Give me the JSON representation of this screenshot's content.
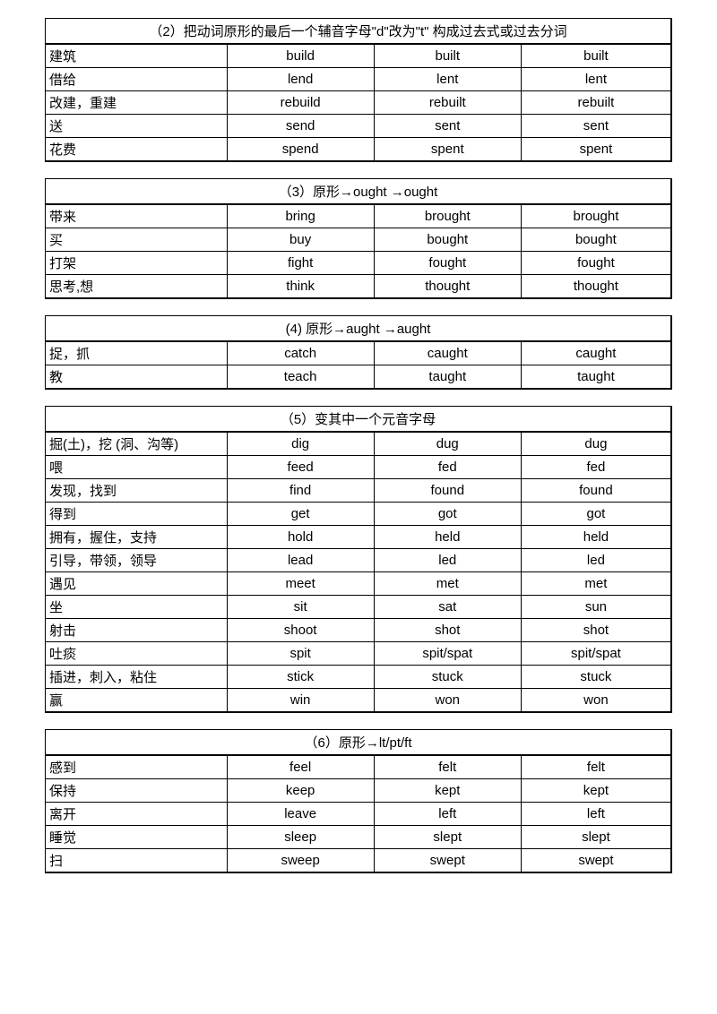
{
  "tables": [
    {
      "header": "（2）把动词原形的最后一个辅音字母\"d\"改为\"t\" 构成过去式或过去分词",
      "rows": [
        [
          "建筑",
          "build",
          "built",
          "built"
        ],
        [
          "借给",
          "lend",
          "lent",
          "lent"
        ],
        [
          "改建，重建",
          "rebuild",
          "rebuilt",
          "rebuilt"
        ],
        [
          "送",
          "send",
          "sent",
          "sent"
        ],
        [
          "花费",
          "spend",
          "spent",
          "spent"
        ]
      ]
    },
    {
      "header": "（3）原形→ought →ought",
      "rows": [
        [
          "带来",
          "bring",
          "brought",
          "brought"
        ],
        [
          "买",
          "buy",
          "bought",
          "bought"
        ],
        [
          "打架",
          "fight",
          "fought",
          "fought"
        ],
        [
          "思考,想",
          "think",
          "thought",
          "thought"
        ]
      ]
    },
    {
      "header": "(4) 原形→aught →aught",
      "rows": [
        [
          "捉，抓",
          "catch",
          "caught",
          "caught"
        ],
        [
          "教",
          "teach",
          "taught",
          "taught"
        ]
      ]
    },
    {
      "header": "（5）变其中一个元音字母",
      "rows": [
        [
          "掘(土)，挖 (洞、沟等)",
          "dig",
          "dug",
          "dug"
        ],
        [
          "喂",
          "feed",
          "fed",
          "fed"
        ],
        [
          "发现，找到",
          "find",
          "found",
          "found"
        ],
        [
          "得到",
          "get",
          "got",
          "got"
        ],
        [
          "拥有，握住，支持",
          "hold",
          "held",
          "held"
        ],
        [
          "引导，带领，领导",
          "lead",
          "led",
          "led"
        ],
        [
          "遇见",
          "meet",
          "met",
          "met"
        ],
        [
          " 坐",
          "sit",
          "sat",
          "sun"
        ],
        [
          "射击",
          "shoot",
          "shot",
          "shot"
        ],
        [
          "吐痰",
          "spit",
          "spit/spat",
          "spit/spat"
        ],
        [
          "插进，刺入，粘住",
          "stick",
          "stuck",
          "stuck"
        ],
        [
          "赢",
          "win",
          "won",
          "won"
        ]
      ]
    },
    {
      "header": "（6）原形→lt/pt/ft",
      "rows": [
        [
          "感到",
          "feel",
          "felt",
          "felt"
        ],
        [
          "保持",
          "keep",
          "kept",
          "kept"
        ],
        [
          "离开",
          "leave",
          "left",
          "left"
        ],
        [
          "睡觉",
          "sleep",
          "slept",
          "slept"
        ],
        [
          "扫",
          "sweep",
          "swept",
          "swept"
        ]
      ]
    }
  ]
}
